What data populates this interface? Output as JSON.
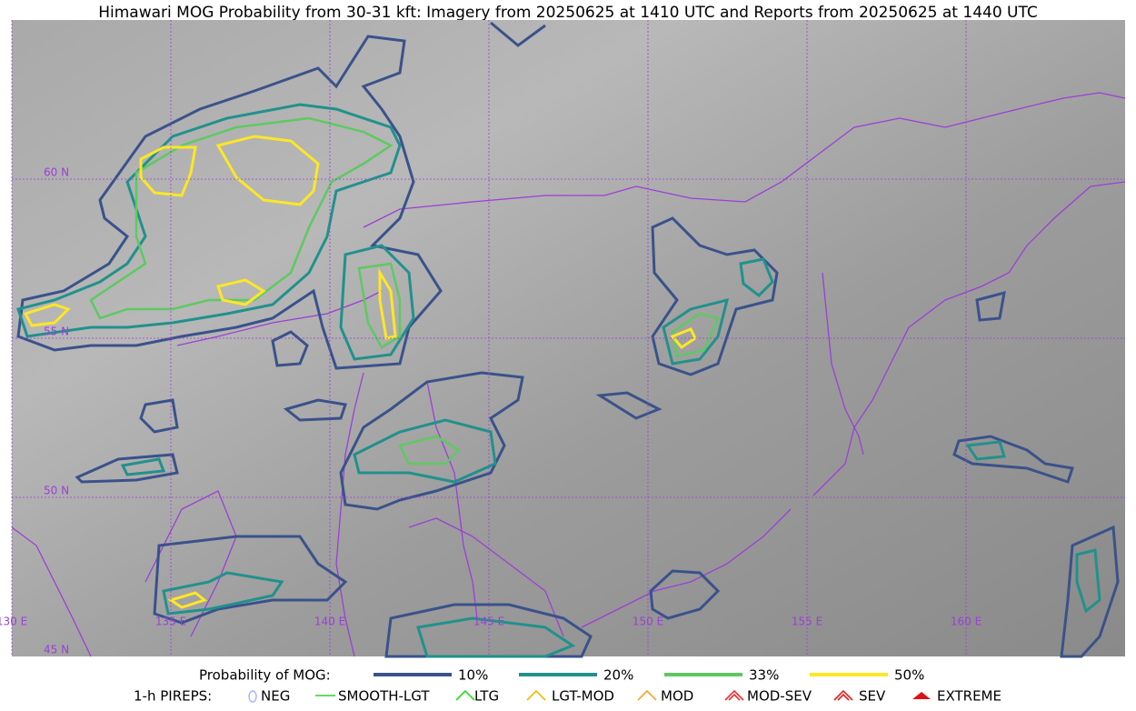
{
  "title": "Himawari MOG Probability from 30-31 kft: Imagery from 20250625 at 1410 UTC and Reports from 20250625 at 1440 UTC",
  "map": {
    "lon_labels": [
      "130 E",
      "135 E",
      "140 E",
      "145 E",
      "150 E",
      "155 E",
      "160 E"
    ],
    "lat_labels": [
      "60 N",
      "55 N",
      "50 N",
      "45 N"
    ]
  },
  "legend": {
    "probability_label": "Probability of MOG:",
    "probability_items": [
      {
        "label": "10%",
        "color": "#3a528b"
      },
      {
        "label": "20%",
        "color": "#21918c"
      },
      {
        "label": "33%",
        "color": "#5ec962"
      },
      {
        "label": "50%",
        "color": "#fde725"
      }
    ],
    "pirep_label": "1-h PIREPS:",
    "pirep_items": [
      {
        "label": "NEG",
        "color": "#b0b0ff"
      },
      {
        "label": "SMOOTH-LGT",
        "color": "#33cc33"
      },
      {
        "label": "LTG",
        "color": "#22dd22"
      },
      {
        "label": "LGT-MOD",
        "color": "#f5b800"
      },
      {
        "label": "MOD",
        "color": "#f5a623"
      },
      {
        "label": "MOD-SEV",
        "color": "#e83030"
      },
      {
        "label": "SEV",
        "color": "#e02020"
      },
      {
        "label": "EXTREME",
        "color": "#dd1111"
      }
    ]
  }
}
